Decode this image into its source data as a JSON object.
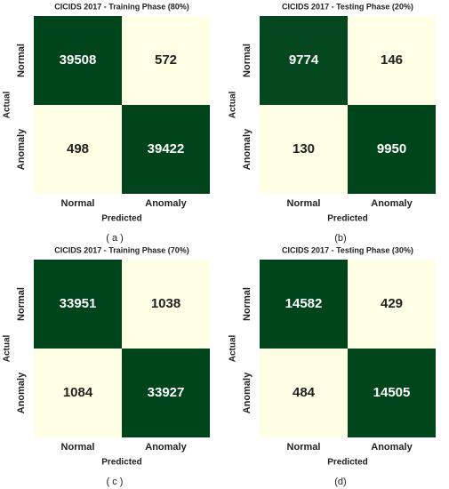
{
  "chart_data": [
    {
      "type": "heatmap",
      "title": "CICIDS 2017 - Training Phase (80%)",
      "caption": "( a )",
      "xlabel": "Predicted",
      "ylabel": "Actual",
      "x_categories": [
        "Normal",
        "Anomaly"
      ],
      "y_categories": [
        "Normal",
        "Anomaly"
      ],
      "values": [
        [
          39508,
          572
        ],
        [
          498,
          39422
        ]
      ],
      "colors": [
        "#ffffe5",
        "#00441b"
      ]
    },
    {
      "type": "heatmap",
      "title": "CICIDS 2017 - Testing Phase (20%)",
      "caption": "(b)",
      "xlabel": "Predicted",
      "ylabel": "Actual",
      "x_categories": [
        "Normal",
        "Anomaly"
      ],
      "y_categories": [
        "Normal",
        "Anomaly"
      ],
      "values": [
        [
          9774,
          146
        ],
        [
          130,
          9950
        ]
      ],
      "colors": [
        "#ffffe5",
        "#00441b"
      ]
    },
    {
      "type": "heatmap",
      "title": "CICIDS 2017 - Training Phase (70%)",
      "caption": "( c )",
      "xlabel": "Predicted",
      "ylabel": "Actual",
      "x_categories": [
        "Normal",
        "Anomaly"
      ],
      "y_categories": [
        "Normal",
        "Anomaly"
      ],
      "values": [
        [
          33951,
          1038
        ],
        [
          1084,
          33927
        ]
      ],
      "colors": [
        "#ffffe5",
        "#00441b"
      ]
    },
    {
      "type": "heatmap",
      "title": "CICIDS 2017 - Testing Phase (30%)",
      "caption": "(d)",
      "xlabel": "Predicted",
      "ylabel": "Actual",
      "x_categories": [
        "Normal",
        "Anomaly"
      ],
      "y_categories": [
        "Normal",
        "Anomaly"
      ],
      "values": [
        [
          14582,
          429
        ],
        [
          484,
          14505
        ]
      ],
      "colors": [
        "#ffffe5",
        "#00441b"
      ]
    }
  ]
}
